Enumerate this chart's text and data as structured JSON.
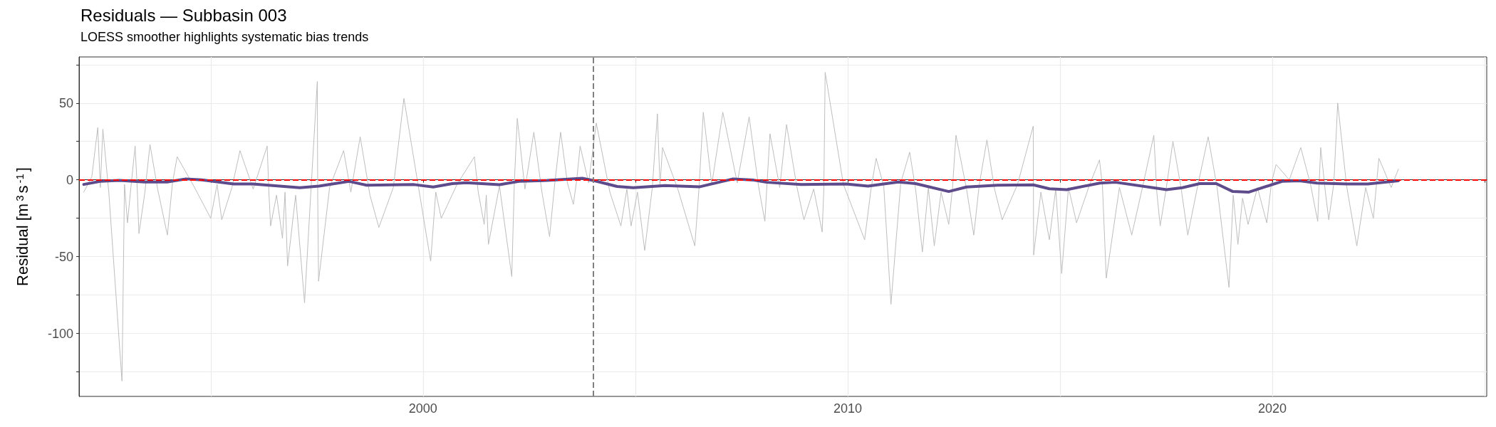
{
  "chart_data": {
    "type": "line",
    "title": "Residuals — Subbasin 003",
    "subtitle": "LOESS smoother highlights systematic bias trends",
    "ylabel": "Residual [m$^{3}$s$^{-1}$]",
    "xlim": [
      1991.9,
      2025.05
    ],
    "xticks": [
      {
        "value": 1995,
        "label": null
      },
      2000,
      {
        "value": 2005,
        "label": null
      },
      2010,
      {
        "value": 2015,
        "label": null
      },
      2020,
      {
        "value": 2025,
        "label": null
      }
    ],
    "ylim": [
      -141,
      80
    ],
    "yticks": [
      {
        "value": -125,
        "label": null
      },
      -100,
      {
        "value": -75,
        "label": null
      },
      -50,
      {
        "value": -25,
        "label": null
      },
      0,
      {
        "value": 25,
        "label": null
      },
      50,
      {
        "value": 75,
        "label": null
      }
    ],
    "grid": true,
    "marker": "none",
    "ref_lines": [
      {
        "axis": "y",
        "value": 0,
        "color": "#ff0000",
        "line_style": "dashed"
      },
      {
        "axis": "x",
        "value": 2004,
        "color": "#808080",
        "line_style": "dashed"
      }
    ],
    "series": [
      {
        "color": "#bebebe",
        "x": [
          1992.01,
          1992.2,
          1992.34,
          1992.4,
          1992.46,
          1992.6,
          1992.91,
          1992.97,
          1993.04,
          1993.12,
          1993.22,
          1993.27,
          1993.31,
          1993.45,
          1993.57,
          1993.75,
          1993.98,
          1994.1,
          1994.21,
          1994.6,
          1995.0,
          1995.15,
          1995.26,
          1995.5,
          1995.69,
          1996.0,
          1996.33,
          1996.37,
          1996.41,
          1996.55,
          1996.69,
          1996.75,
          1996.81,
          1997.0,
          1997.21,
          1997.35,
          1997.51,
          1997.52,
          1997.54,
          1997.8,
          1998.13,
          1998.3,
          1998.52,
          1998.75,
          1998.96,
          1999.3,
          1999.55,
          1999.9,
          2000.18,
          2000.3,
          2000.43,
          2000.8,
          2001.21,
          2001.3,
          2001.44,
          2001.49,
          2001.54,
          2001.8,
          2002.09,
          2002.15,
          2002.22,
          2002.4,
          2002.61,
          2002.8,
          2002.98,
          2003.1,
          2003.24,
          2003.4,
          2003.54,
          2003.62,
          2003.7,
          2003.9,
          2004.08,
          2004.4,
          2004.66,
          2004.8,
          2004.9,
          2005.05,
          2005.22,
          2005.4,
          2005.52,
          2005.58,
          2005.64,
          2006.0,
          2006.4,
          2006.5,
          2006.6,
          2006.8,
          2007.06,
          2007.4,
          2007.68,
          2007.9,
          2008.05,
          2008.1,
          2008.17,
          2008.4,
          2008.56,
          2008.8,
          2008.97,
          2009.2,
          2009.4,
          2009.44,
          2009.47,
          2009.9,
          2010.4,
          2010.55,
          2010.67,
          2010.85,
          2011.02,
          2011.25,
          2011.46,
          2011.6,
          2011.76,
          2011.9,
          2012.04,
          2012.2,
          2012.38,
          2012.47,
          2012.55,
          2012.8,
          2012.97,
          2013.1,
          2013.28,
          2013.45,
          2013.64,
          2014.0,
          2014.37,
          2014.38,
          2014.55,
          2014.75,
          2014.9,
          2015.04,
          2015.2,
          2015.39,
          2015.7,
          2015.93,
          2016.0,
          2016.09,
          2016.4,
          2016.69,
          2016.95,
          2017.21,
          2017.28,
          2017.36,
          2017.5,
          2017.66,
          2017.85,
          2018.01,
          2018.25,
          2018.49,
          2018.7,
          2018.98,
          2019.08,
          2019.19,
          2019.3,
          2019.43,
          2019.65,
          2019.87,
          2019.98,
          2020.09,
          2020.4,
          2020.67,
          2020.9,
          2021.07,
          2021.1,
          2021.14,
          2021.25,
          2021.33,
          2021.45,
          2021.54,
          2021.75,
          2021.99,
          2022.2,
          2022.38,
          2022.45,
          2022.51,
          2022.8,
          2022.97
        ],
        "values": [
          -8,
          2,
          34,
          -5,
          33,
          -8,
          -131,
          -3,
          -28,
          -5,
          22,
          -6,
          -35,
          -8,
          23,
          -6,
          -36,
          -2,
          15,
          -4,
          -25,
          -3,
          -26,
          -5,
          19,
          -6,
          22,
          -8,
          -30,
          -10,
          -38,
          -8,
          -56,
          -10,
          -80,
          -12,
          64,
          -10,
          -66,
          -5,
          19,
          -8,
          28,
          -10,
          -31,
          -5,
          53,
          -6,
          -53,
          -8,
          -25,
          -3,
          15,
          -8,
          -29,
          -10,
          -42,
          -4,
          -63,
          -2,
          40,
          -6,
          31,
          -8,
          -37,
          -3,
          31,
          -2,
          -16,
          0,
          22,
          -2,
          37,
          -8,
          -30,
          -6,
          -30,
          -8,
          -46,
          -5,
          43,
          -4,
          21,
          -6,
          -43,
          -5,
          44,
          -3,
          44,
          -2,
          41,
          -4,
          -27,
          -3,
          30,
          -5,
          36,
          -4,
          -26,
          -6,
          -34,
          -5,
          70,
          -3,
          -39,
          -6,
          14,
          -4,
          -81,
          -2,
          18,
          -6,
          -47,
          -5,
          -43,
          -8,
          -29,
          -5,
          29,
          -6,
          -36,
          -3,
          26,
          -5,
          -26,
          -3,
          35,
          -49,
          -8,
          -39,
          -6,
          -61,
          -5,
          -28,
          -3,
          13,
          -4,
          -64,
          -5,
          -36,
          -4,
          29,
          -8,
          -30,
          -6,
          25,
          -5,
          -36,
          -3,
          28,
          -5,
          -70,
          -10,
          -42,
          -12,
          -29,
          -5,
          -28,
          -2,
          10,
          0,
          21,
          -3,
          -27,
          -5,
          21,
          -8,
          -26,
          -2,
          50,
          -4,
          -43,
          -5,
          -25,
          -4,
          14,
          -5,
          7
        ]
      },
      {
        "color": "#5e4b8b",
        "x": [
          1992.01,
          1992.4,
          1992.85,
          1993.45,
          1993.97,
          1994.42,
          1994.79,
          1995.54,
          1995.99,
          1997.1,
          1997.55,
          1998.26,
          1998.67,
          1999.79,
          2000.24,
          2000.69,
          2001.02,
          2001.8,
          2002.26,
          2002.93,
          2003.75,
          2004.04,
          2004.57,
          2004.95,
          2005.7,
          2006.52,
          2007.3,
          2007.79,
          2008.09,
          2008.91,
          2009.96,
          2010.48,
          2011.19,
          2011.6,
          2012.38,
          2012.8,
          2013.53,
          2014.37,
          2014.75,
          2015.16,
          2015.94,
          2016.31,
          2017.51,
          2017.88,
          2018.29,
          2018.68,
          2019.07,
          2019.45,
          2020.23,
          2020.64,
          2021.05,
          2021.76,
          2022.25,
          2022.97
        ],
        "values": [
          -3,
          -1,
          -0.4,
          -1.4,
          -1.4,
          0.6,
          0,
          -2.7,
          -2.7,
          -5.1,
          -4.1,
          -1,
          -3.5,
          -3.1,
          -4.7,
          -2.5,
          -1.9,
          -3.2,
          -1,
          -0.4,
          1,
          -0.6,
          -4.3,
          -5.1,
          -3.7,
          -4.5,
          0.6,
          -0.2,
          -1.6,
          -3.1,
          -2.7,
          -4.1,
          -1.4,
          -2.5,
          -7.6,
          -4.7,
          -3.5,
          -3.3,
          -5.8,
          -6.4,
          -2.1,
          -1.6,
          -6.4,
          -5.1,
          -2.5,
          -2.5,
          -7.6,
          -8,
          -1,
          -0.6,
          -2.1,
          -2.7,
          -2.7,
          -0.6
        ]
      }
    ]
  }
}
